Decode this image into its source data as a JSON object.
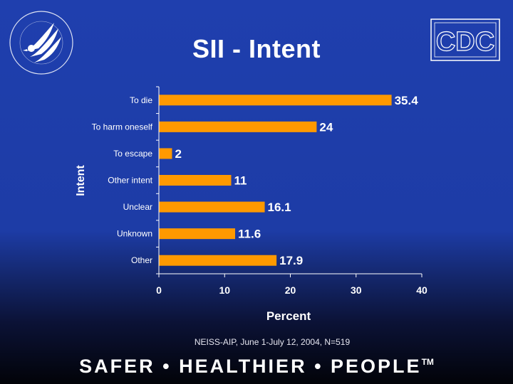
{
  "slide": {
    "title": "SII - Intent",
    "source": "NEISS-AIP, June 1-July 12, 2004, N=519",
    "tagline": "SAFER • HEALTHIER • PEOPLE",
    "tagline_mark": "TM",
    "logo_left": "hhs-eagle-seal",
    "logo_right_text": "CDC"
  },
  "colors": {
    "bar": "#ff9900",
    "text": "#ffffff",
    "axis": "#ffffff"
  },
  "chart_data": {
    "type": "bar",
    "orientation": "horizontal",
    "categories": [
      "To die",
      "To harm oneself",
      "To escape",
      "Other intent",
      "Unclear",
      "Unknown",
      "Other"
    ],
    "values": [
      35.4,
      24,
      2,
      11,
      16.1,
      11.6,
      17.9
    ],
    "data_labels": [
      "35.4",
      "24",
      "2",
      "11",
      "16.1",
      "11.6",
      "17.9"
    ],
    "xlabel": "Percent",
    "ylabel": "Intent",
    "xlim": [
      0,
      40
    ],
    "xticks": [
      0,
      10,
      20,
      30,
      40
    ],
    "grid": false,
    "legend": "none"
  }
}
